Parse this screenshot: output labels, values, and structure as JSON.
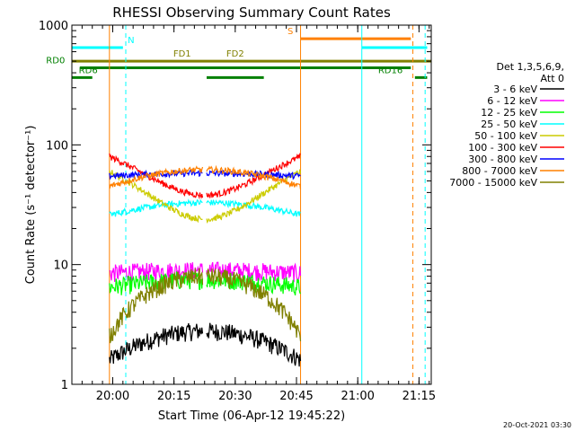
{
  "chart_data": {
    "type": "line",
    "title": "RHESSI Observing Summary Count Rates",
    "xlabel": "Start Time (06-Apr-12 19:45:22)",
    "ylabel": "Count Rate (s⁻¹ detector⁻¹)",
    "yscale": "log",
    "ylim": [
      1,
      1000
    ],
    "xlim_minutes": [
      -10,
      78
    ],
    "x_ticks": [
      {
        "label": "20:00",
        "m": 0
      },
      {
        "label": "20:15",
        "m": 15
      },
      {
        "label": "20:30",
        "m": 30
      },
      {
        "label": "20:45",
        "m": 45
      },
      {
        "label": "21:00",
        "m": 60
      },
      {
        "label": "21:15",
        "m": 75
      }
    ],
    "y_ticks": [
      {
        "label": "1",
        "v": 1
      },
      {
        "label": "10",
        "v": 10
      },
      {
        "label": "100",
        "v": 100
      },
      {
        "label": "1000",
        "v": 1000
      }
    ],
    "legend": {
      "header": [
        "Det 1,3,5,6,9,",
        "Att 0"
      ],
      "placement": "right"
    },
    "segments_minutes": [
      [
        -0.8,
        22
      ],
      [
        23,
        46
      ]
    ],
    "series": [
      {
        "name": "3 - 6 keV",
        "color": "#000000",
        "start": 1.6,
        "peak": 2.8,
        "end": 1.6
      },
      {
        "name": "6 - 12 keV",
        "color": "#ff00ff",
        "start": 8.5,
        "peak": 9.0,
        "end": 8.5
      },
      {
        "name": "12 - 25 keV",
        "color": "#00ff00",
        "start": 6.5,
        "peak": 7.5,
        "end": 6.5
      },
      {
        "name": "25 - 50 keV",
        "color": "#00ffff",
        "start": 26,
        "peak": 33,
        "end": 25
      },
      {
        "name": "50 - 100 keV",
        "color": "#cccc00",
        "start": 60,
        "peak": 24,
        "end": 60
      },
      {
        "name": "100 - 300 keV",
        "color": "#ff0000",
        "start": 80,
        "peak": 38,
        "end": 80
      },
      {
        "name": "300 - 800 keV",
        "color": "#0000ff",
        "start": 55,
        "peak": 58,
        "end": 55
      },
      {
        "name": "800 - 7000 keV",
        "color": "#ff8000",
        "start": 45,
        "peak": 62,
        "end": 45
      },
      {
        "name": "7000 - 15000 keV",
        "color": "#808000",
        "start": 2.5,
        "peak": 8,
        "end": 2.5
      }
    ],
    "vertical_lines": [
      {
        "m": -10,
        "color": "#00ffff",
        "style": "solid"
      },
      {
        "m": -0.8,
        "color": "#ff8000",
        "style": "solid"
      },
      {
        "m": 3.2,
        "color": "#00ffff",
        "style": "dashed"
      },
      {
        "m": 46,
        "color": "#ff8000",
        "style": "solid"
      },
      {
        "m": 61,
        "color": "#00ffff",
        "style": "solid"
      },
      {
        "m": 73.5,
        "color": "#ff8000",
        "style": "dashed"
      },
      {
        "m": 76.5,
        "color": "#00ffff",
        "style": "dashed"
      }
    ],
    "flag_bars": [
      {
        "label": "N",
        "color": "#00ffff",
        "y": 650,
        "from": -10,
        "to": 2.5,
        "label_m": 4.5
      },
      {
        "label": "S",
        "color": "#ff8000",
        "y": 770,
        "from": 46,
        "to": 73,
        "label_m": 43.5
      },
      {
        "label": "",
        "color": "#00ffff",
        "y": 650,
        "from": 61,
        "to": 77,
        "label_m": null
      },
      {
        "label": "FD1",
        "color": "#808000",
        "y": 500,
        "from": -10,
        "to": 78,
        "label_m": 17
      },
      {
        "label": "FD2",
        "color": "#808000",
        "y": 500,
        "from": 30,
        "to": 30,
        "label_m": 30
      },
      {
        "label": "RD0",
        "color": "#008000",
        "y": 440,
        "from": -8,
        "to": 73,
        "label_m": -14
      },
      {
        "label": "RD6",
        "color": "#008000",
        "y": 365,
        "from": -10,
        "to": -5,
        "label_m": -6
      },
      {
        "label": "",
        "color": "#008000",
        "y": 365,
        "from": 23,
        "to": 37,
        "label_m": null
      },
      {
        "label": "RD16",
        "color": "#008000",
        "y": 365,
        "from": 74,
        "to": 77,
        "label_m": 68
      }
    ],
    "timestamp": "20-Oct-2021 03:30"
  }
}
